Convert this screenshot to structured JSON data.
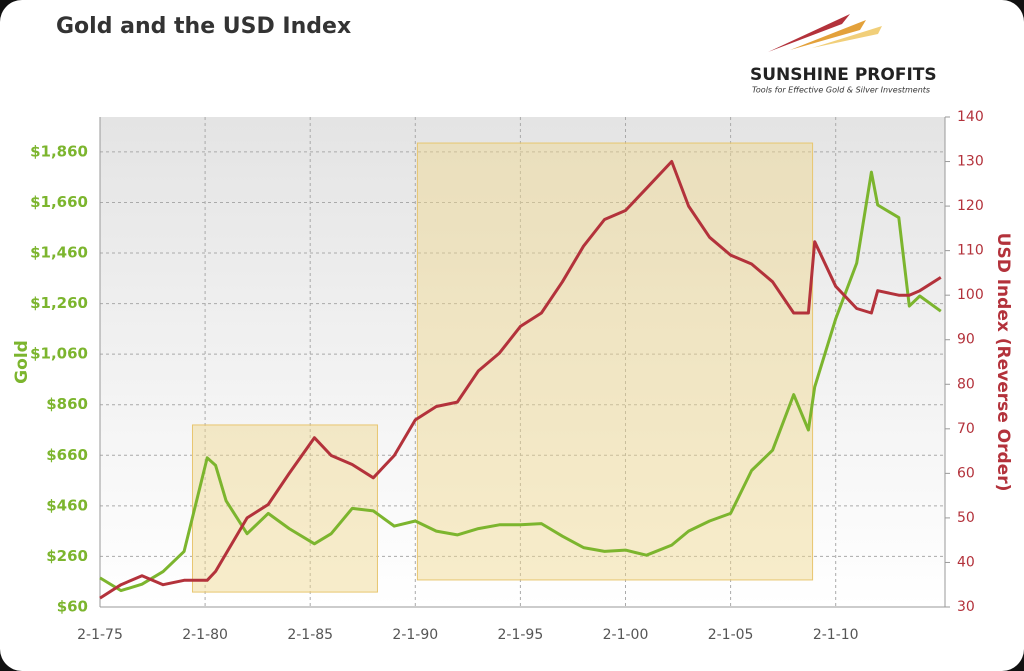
{
  "chart_data": {
    "type": "line",
    "title": "Gold and the USD Index",
    "logo": {
      "name": "SUNSHINE PROFITS",
      "tagline": "Tools for Effective Gold & Silver Investments"
    },
    "ylabel": "Gold",
    "y2label": "USD Index (Reverse Order)",
    "x": [
      1975,
      1976,
      1977,
      1978,
      1979,
      1980.1,
      1980.5,
      1981,
      1982,
      1983,
      1984,
      1985.2,
      1986,
      1987,
      1988,
      1989,
      1990,
      1991,
      1992,
      1993,
      1994,
      1995,
      1996,
      1997,
      1998,
      1999,
      2000,
      2001,
      2002.2,
      2003,
      2004,
      2005,
      2006,
      2007,
      2008,
      2008.7,
      2009,
      2010,
      2011,
      2011.7,
      2012,
      2013,
      2013.5,
      2014,
      2015
    ],
    "series": [
      {
        "name": "Gold",
        "color": "#7cb52e",
        "values": [
          175,
          125,
          150,
          200,
          280,
          650,
          620,
          480,
          350,
          430,
          370,
          310,
          350,
          450,
          440,
          380,
          400,
          360,
          345,
          370,
          385,
          385,
          390,
          340,
          295,
          280,
          285,
          265,
          305,
          360,
          400,
          430,
          600,
          680,
          900,
          760,
          930,
          1200,
          1420,
          1780,
          1650,
          1600,
          1250,
          1290,
          1230
        ]
      },
      {
        "name": "USD Index",
        "color": "#b3323b",
        "axis": "y2",
        "values": [
          32,
          35,
          37,
          35,
          36,
          36,
          38,
          42,
          50,
          53,
          60,
          68,
          64,
          62,
          59,
          64,
          72,
          75,
          76,
          83,
          87,
          93,
          96,
          103,
          111,
          117,
          119,
          124,
          130,
          120,
          113,
          109,
          107,
          103,
          96,
          96,
          112,
          102,
          97,
          96,
          101,
          100,
          100,
          101,
          104
        ]
      }
    ],
    "xlim": [
      1975,
      2015.2
    ],
    "xticks": [
      {
        "value": 1975,
        "label": "2-1-75"
      },
      {
        "value": 1980,
        "label": "2-1-80"
      },
      {
        "value": 1985,
        "label": "2-1-85"
      },
      {
        "value": 1990,
        "label": "2-1-90"
      },
      {
        "value": 1995,
        "label": "2-1-95"
      },
      {
        "value": 2000,
        "label": "2-1-00"
      },
      {
        "value": 2005,
        "label": "2-1-05"
      },
      {
        "value": 2010,
        "label": "2-1-10"
      }
    ],
    "ylim": [
      60,
      1998
    ],
    "yticks": [
      {
        "value": 60,
        "label": "$60"
      },
      {
        "value": 260,
        "label": "$260"
      },
      {
        "value": 460,
        "label": "$460"
      },
      {
        "value": 660,
        "label": "$660"
      },
      {
        "value": 860,
        "label": "$860"
      },
      {
        "value": 1060,
        "label": "$1,060"
      },
      {
        "value": 1260,
        "label": "$1,260"
      },
      {
        "value": 1460,
        "label": "$1,460"
      },
      {
        "value": 1660,
        "label": "$1,660"
      },
      {
        "value": 1860,
        "label": "$1,860"
      }
    ],
    "y2lim": [
      30,
      140
    ],
    "y2ticks": [
      30,
      40,
      50,
      60,
      70,
      80,
      90,
      100,
      110,
      120,
      130,
      140
    ],
    "highlights": [
      {
        "x": [
          1979.4,
          1988.2
        ],
        "y": [
          119,
          780
        ]
      },
      {
        "x": [
          1990.1,
          2008.9
        ],
        "y": [
          167,
          1895
        ]
      }
    ],
    "grid": true
  }
}
